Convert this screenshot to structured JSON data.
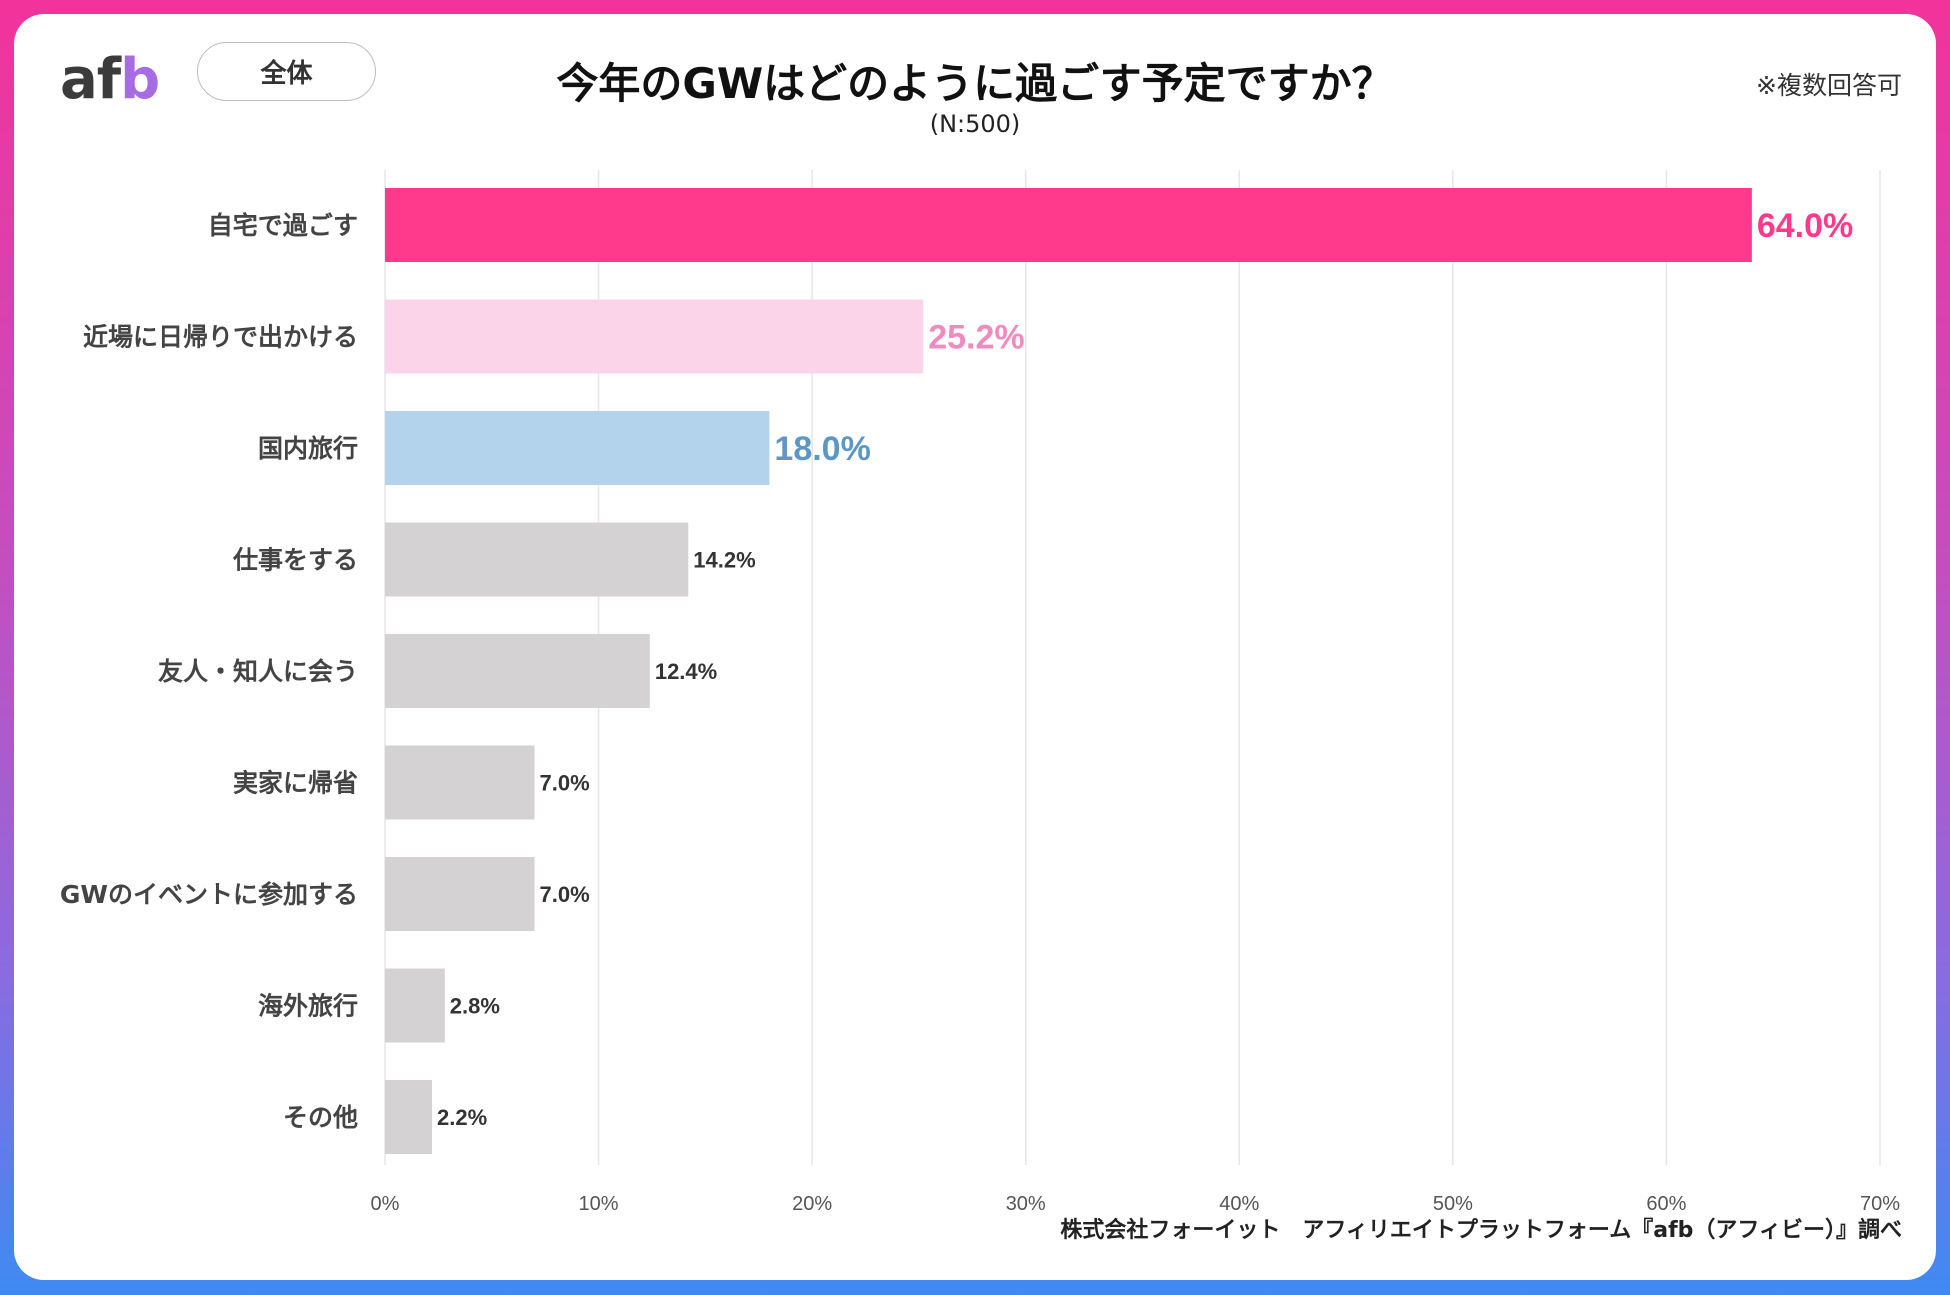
{
  "header": {
    "logo": {
      "a": "a",
      "f": "f",
      "b": "b"
    },
    "scope_label": "全体",
    "title": "今年のGWはどのように過ごす予定ですか？",
    "subtitle": "(N:500)",
    "note": "※複数回答可"
  },
  "footer": {
    "source": "株式会社フォーイット　アフィリエイトプラットフォーム『afb（アフィビー）』調べ"
  },
  "colors": {
    "pink": "#ff3a8c",
    "light_pink": "#fcd4e9",
    "light_pink_label": "#f08bc0",
    "blue": "#b2d3eb",
    "blue_label": "#5d97c8",
    "gray": "#d5d2d3",
    "label_dark": "#333333"
  },
  "chart_data": {
    "type": "bar",
    "orientation": "horizontal",
    "categories": [
      "自宅で過ごす",
      "近場に日帰りで出かける",
      "国内旅行",
      "仕事をする",
      "友人・知人に会う",
      "実家に帰省",
      "GWのイベントに参加する",
      "海外旅行",
      "その他"
    ],
    "values": [
      64.0,
      25.2,
      18.0,
      14.2,
      12.4,
      7.0,
      7.0,
      2.8,
      2.2
    ],
    "value_labels": [
      "64.0%",
      "25.2%",
      "18.0%",
      "14.2%",
      "12.4%",
      "7.0%",
      "7.0%",
      "2.8%",
      "2.2%"
    ],
    "bar_colors": [
      "pink",
      "light_pink",
      "blue",
      "gray",
      "gray",
      "gray",
      "gray",
      "gray",
      "gray"
    ],
    "label_colors": [
      "pink",
      "light_pink_label",
      "blue_label",
      "label_dark",
      "label_dark",
      "label_dark",
      "label_dark",
      "label_dark",
      "label_dark"
    ],
    "label_emphasis": [
      true,
      true,
      true,
      false,
      false,
      false,
      false,
      false,
      false
    ],
    "xlim": [
      0,
      70
    ],
    "xticks": [
      0,
      10,
      20,
      30,
      40,
      50,
      60,
      70
    ],
    "xtick_labels": [
      "0%",
      "10%",
      "20%",
      "30%",
      "40%",
      "50%",
      "60%",
      "70%"
    ],
    "grid": true,
    "xlabel": "",
    "ylabel": ""
  }
}
